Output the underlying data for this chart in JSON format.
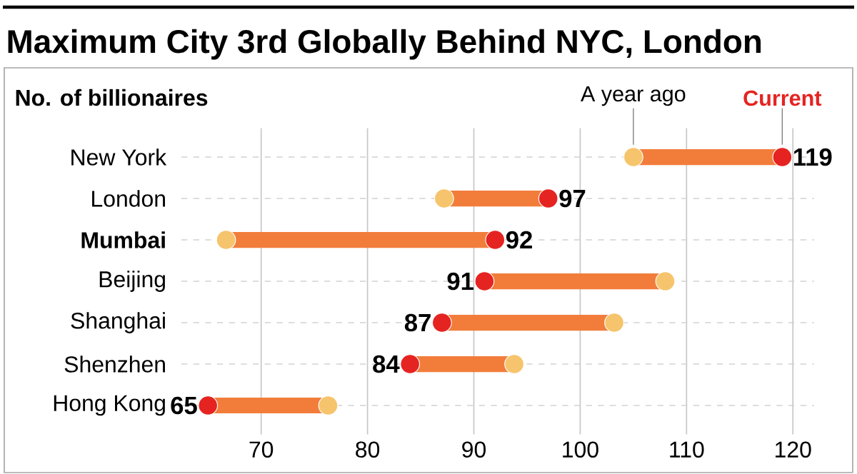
{
  "chart_data": {
    "type": "scatter",
    "orientation": "horizontal",
    "title": "Maximum City 3rd Globally Behind NYC, London",
    "subtitle": "No. of billionaires",
    "categories": [
      "New York",
      "London",
      "**Mumbai**",
      "Beijing",
      "Shanghai",
      "Shenzhen",
      "Hong Kong"
    ],
    "series": [
      {
        "name": "A year ago",
        "color": "#f6c46c",
        "values": [
          105,
          87.2,
          66.7,
          108,
          103.2,
          93.8,
          76.3
        ]
      },
      {
        "name": "Current",
        "color": "#e52421",
        "values": [
          119,
          97,
          92,
          91,
          87,
          84,
          65
        ],
        "value_labels": [
          "119",
          "97",
          "92",
          "91",
          "87",
          "84",
          "65"
        ]
      }
    ],
    "xlim": [
      62.5,
      122
    ],
    "xticks": [
      70,
      80,
      90,
      100,
      110,
      120
    ],
    "grid": true,
    "marker": "circle"
  }
}
